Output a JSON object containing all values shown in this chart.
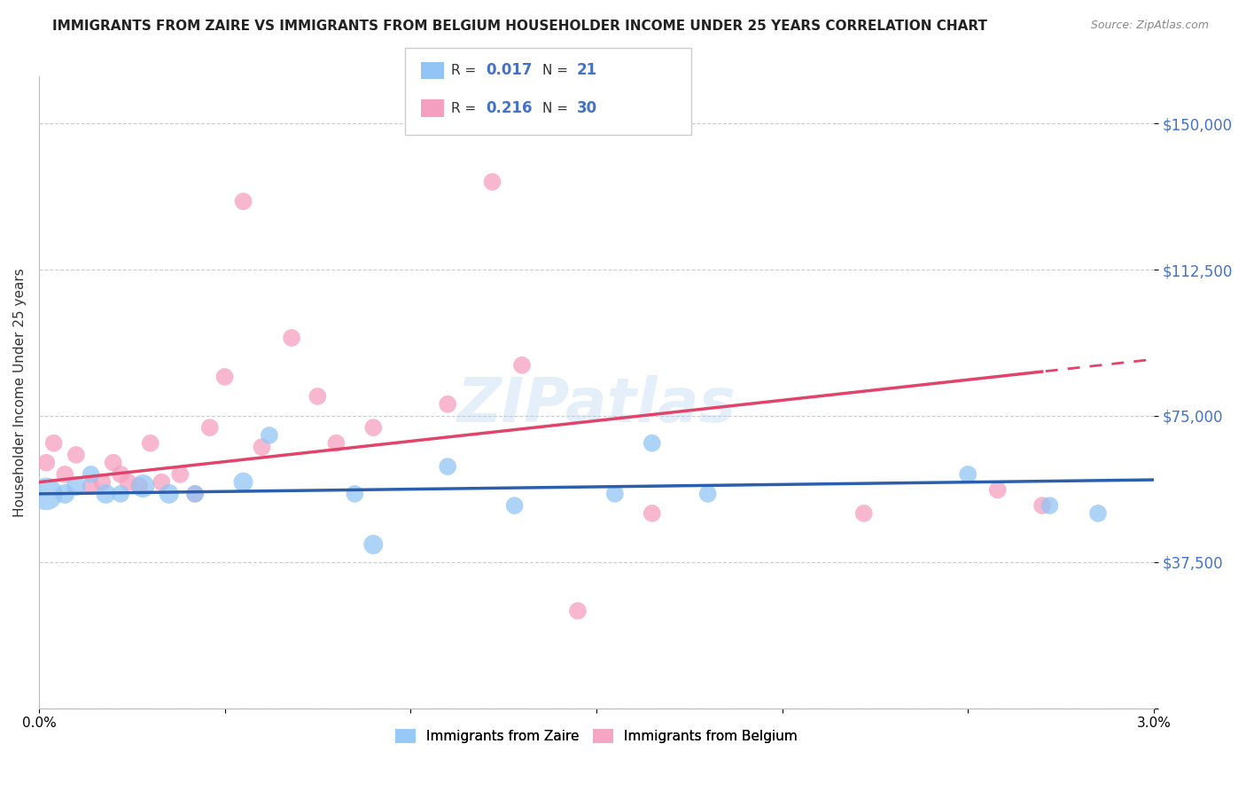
{
  "title": "IMMIGRANTS FROM ZAIRE VS IMMIGRANTS FROM BELGIUM HOUSEHOLDER INCOME UNDER 25 YEARS CORRELATION CHART",
  "source": "Source: ZipAtlas.com",
  "ylabel": "Householder Income Under 25 years",
  "yticks": [
    0,
    37500,
    75000,
    112500,
    150000
  ],
  "ytick_labels": [
    "",
    "$37,500",
    "$75,000",
    "$112,500",
    "$150,000"
  ],
  "xmin": 0.0,
  "xmax": 3.0,
  "ymin": 0,
  "ymax": 162000,
  "zaire_x": [
    0.02,
    0.07,
    0.1,
    0.14,
    0.18,
    0.22,
    0.28,
    0.35,
    0.55,
    0.62,
    0.85,
    0.9,
    1.28,
    1.55,
    1.65,
    1.8,
    2.5,
    2.72,
    2.85,
    1.1,
    0.42
  ],
  "zaire_y": [
    55000,
    55000,
    57000,
    60000,
    55000,
    55000,
    57000,
    55000,
    58000,
    70000,
    55000,
    42000,
    52000,
    55000,
    68000,
    55000,
    60000,
    52000,
    50000,
    62000,
    55000
  ],
  "zaire_sizes": [
    700,
    250,
    250,
    200,
    250,
    200,
    350,
    250,
    250,
    200,
    200,
    250,
    200,
    200,
    200,
    200,
    200,
    200,
    200,
    200,
    200
  ],
  "belgium_x": [
    0.02,
    0.04,
    0.07,
    0.1,
    0.14,
    0.17,
    0.2,
    0.22,
    0.24,
    0.27,
    0.3,
    0.33,
    0.38,
    0.42,
    0.46,
    0.5,
    0.55,
    0.6,
    0.68,
    0.75,
    0.8,
    0.9,
    1.1,
    1.22,
    1.3,
    1.45,
    1.65,
    2.22,
    2.58,
    2.7
  ],
  "belgium_y": [
    63000,
    68000,
    60000,
    65000,
    57000,
    58000,
    63000,
    60000,
    58000,
    57000,
    68000,
    58000,
    60000,
    55000,
    72000,
    85000,
    130000,
    67000,
    95000,
    80000,
    68000,
    72000,
    78000,
    135000,
    88000,
    25000,
    50000,
    50000,
    56000,
    52000
  ],
  "belgium_sizes": [
    200,
    200,
    200,
    200,
    200,
    200,
    200,
    200,
    200,
    200,
    200,
    200,
    200,
    200,
    200,
    200,
    200,
    200,
    200,
    200,
    200,
    200,
    200,
    200,
    200,
    200,
    200,
    200,
    200,
    200
  ],
  "zaire_color": "#92c5f5",
  "belgium_color": "#f5a0c0",
  "zaire_line_color": "#2b5fad",
  "belgium_line_color": "#e0446a",
  "background_color": "#ffffff",
  "grid_color": "#cccccc",
  "tick_label_color": "#4472c4",
  "title_fontsize": 11,
  "legend_r_zaire": "0.017",
  "legend_n_zaire": "21",
  "legend_r_belgium": "0.216",
  "legend_n_belgium": "30"
}
